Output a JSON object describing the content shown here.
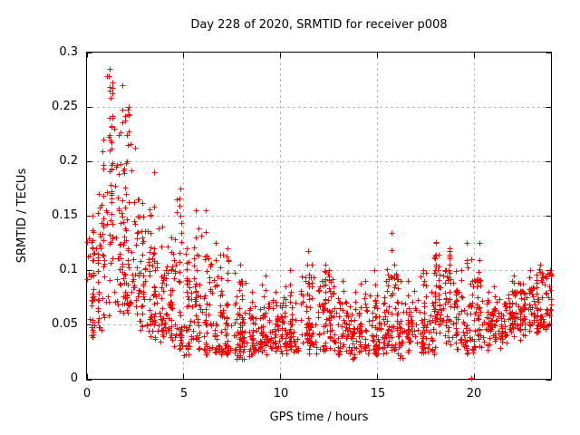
{
  "title": "Day 228 of 2020, SRMTID for receiver p008",
  "chart_data": {
    "type": "scatter",
    "title": "Day 228 of 2020, SRMTID for receiver p008",
    "xlabel": "GPS time / hours",
    "ylabel": "SRMTID / TECUs",
    "xlim": [
      0,
      24
    ],
    "ylim": [
      0,
      0.3
    ],
    "xticks": [
      0,
      5,
      10,
      15,
      20
    ],
    "yticks": [
      0,
      0.05,
      0.1,
      0.15,
      0.2,
      0.25,
      0.3
    ],
    "xtick_labels": [
      "0",
      "5",
      "10",
      "15",
      "20"
    ],
    "ytick_labels": [
      "0",
      "0.05",
      "0.1",
      "0.15",
      "0.2",
      "0.25",
      "0.3"
    ],
    "grid": true,
    "grid_style": "dashed",
    "grid_color": "#9b9b9b",
    "border_color": "#000000",
    "marker": "plus",
    "marker_color": "#ff0000",
    "marker_size_px": 7,
    "legend": null,
    "description": "Dense time series of SRMTID values vs GPS time; large peak 1-2.5 h reaching 0.285 TECUs, decaying through 3-6 h with secondary spikes (~0.19 at 3.4 h, ~0.17 at 4.9 h, ~0.155 at 5.7-6.3 h), then a low band ~0.03-0.07 for 7-21 h with spikes (~0.12 at 11 h, ~0.134 at 15.7 h, ~0.126 at 18.3 h, ~0.125 near 20 h) and a gentle rise to ~0.05-0.10 by 22-24 h.",
    "outliers": [
      [
        19.85,
        0.001
      ]
    ],
    "density_bins": {
      "bin_width_hours": 0.5,
      "columns": [
        "start_hour",
        "count",
        "y_min",
        "y_dense_low",
        "y_dense_high",
        "y_max"
      ],
      "rows": [
        [
          0.0,
          40,
          0.035,
          0.05,
          0.12,
          0.15
        ],
        [
          0.5,
          46,
          0.04,
          0.06,
          0.16,
          0.22
        ],
        [
          1.0,
          55,
          0.05,
          0.08,
          0.24,
          0.285
        ],
        [
          1.5,
          55,
          0.05,
          0.08,
          0.22,
          0.27
        ],
        [
          2.0,
          50,
          0.05,
          0.07,
          0.2,
          0.25
        ],
        [
          2.5,
          46,
          0.04,
          0.06,
          0.13,
          0.165
        ],
        [
          3.0,
          45,
          0.03,
          0.05,
          0.12,
          0.19
        ],
        [
          3.5,
          42,
          0.03,
          0.045,
          0.1,
          0.14
        ],
        [
          4.0,
          40,
          0.025,
          0.04,
          0.1,
          0.13
        ],
        [
          4.5,
          42,
          0.02,
          0.04,
          0.12,
          0.175
        ],
        [
          5.0,
          40,
          0.018,
          0.03,
          0.09,
          0.12
        ],
        [
          5.5,
          40,
          0.02,
          0.03,
          0.1,
          0.155
        ],
        [
          6.0,
          42,
          0.02,
          0.03,
          0.11,
          0.155
        ],
        [
          6.5,
          42,
          0.02,
          0.03,
          0.09,
          0.125
        ],
        [
          7.0,
          40,
          0.02,
          0.03,
          0.07,
          0.12
        ],
        [
          7.5,
          40,
          0.015,
          0.025,
          0.07,
          0.105
        ],
        [
          8.0,
          40,
          0.015,
          0.025,
          0.06,
          0.09
        ],
        [
          8.5,
          38,
          0.02,
          0.03,
          0.06,
          0.08
        ],
        [
          9.0,
          40,
          0.02,
          0.03,
          0.065,
          0.095
        ],
        [
          9.5,
          38,
          0.02,
          0.03,
          0.06,
          0.08
        ],
        [
          10.0,
          38,
          0.02,
          0.03,
          0.06,
          0.085
        ],
        [
          10.5,
          40,
          0.02,
          0.03,
          0.07,
          0.1
        ],
        [
          11.0,
          42,
          0.025,
          0.04,
          0.09,
          0.118
        ],
        [
          11.5,
          40,
          0.02,
          0.03,
          0.08,
          0.105
        ],
        [
          12.0,
          42,
          0.02,
          0.04,
          0.09,
          0.105
        ],
        [
          12.5,
          40,
          0.02,
          0.035,
          0.08,
          0.1
        ],
        [
          13.0,
          38,
          0.02,
          0.03,
          0.07,
          0.09
        ],
        [
          13.5,
          38,
          0.015,
          0.03,
          0.06,
          0.08
        ],
        [
          14.0,
          38,
          0.02,
          0.03,
          0.065,
          0.09
        ],
        [
          14.5,
          38,
          0.02,
          0.03,
          0.07,
          0.1
        ],
        [
          15.0,
          38,
          0.02,
          0.03,
          0.07,
          0.09
        ],
        [
          15.5,
          40,
          0.02,
          0.04,
          0.1,
          0.134
        ],
        [
          16.0,
          38,
          0.015,
          0.03,
          0.07,
          0.095
        ],
        [
          16.5,
          36,
          0.02,
          0.03,
          0.06,
          0.09
        ],
        [
          17.0,
          38,
          0.02,
          0.03,
          0.07,
          0.1
        ],
        [
          17.5,
          38,
          0.02,
          0.03,
          0.08,
          0.112
        ],
        [
          18.0,
          42,
          0.025,
          0.05,
          0.1,
          0.126
        ],
        [
          18.5,
          42,
          0.025,
          0.05,
          0.1,
          0.12
        ],
        [
          19.0,
          38,
          0.02,
          0.04,
          0.08,
          0.1
        ],
        [
          19.5,
          38,
          0.02,
          0.03,
          0.09,
          0.125
        ],
        [
          20.0,
          40,
          0.025,
          0.04,
          0.09,
          0.125
        ],
        [
          20.5,
          36,
          0.02,
          0.03,
          0.06,
          0.08
        ],
        [
          21.0,
          36,
          0.025,
          0.035,
          0.065,
          0.085
        ],
        [
          21.5,
          38,
          0.025,
          0.04,
          0.07,
          0.09
        ],
        [
          22.0,
          40,
          0.03,
          0.045,
          0.08,
          0.095
        ],
        [
          22.5,
          44,
          0.035,
          0.05,
          0.085,
          0.1
        ],
        [
          23.0,
          44,
          0.04,
          0.05,
          0.09,
          0.105
        ],
        [
          23.5,
          42,
          0.04,
          0.055,
          0.095,
          0.1
        ]
      ]
    }
  }
}
